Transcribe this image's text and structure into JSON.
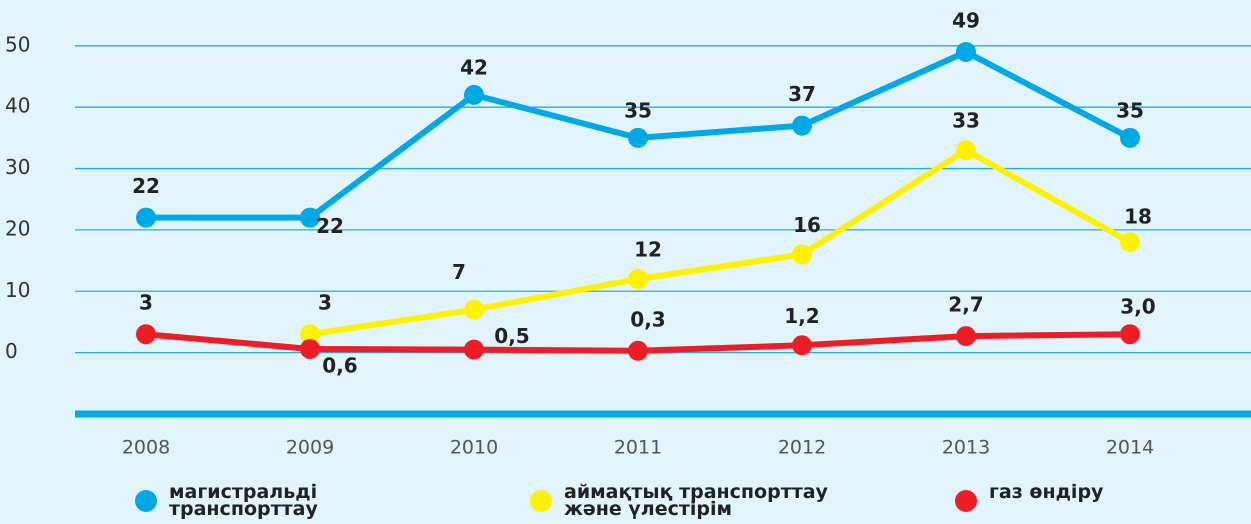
{
  "chart_data": {
    "type": "line",
    "categories": [
      "2008",
      "2009",
      "2010",
      "2011",
      "2012",
      "2013",
      "2014"
    ],
    "series": [
      {
        "name": "магистральді транспорттау",
        "color": "#00a9e6",
        "values": [
          22,
          22,
          42,
          35,
          37,
          49,
          35
        ]
      },
      {
        "name": "аймақтық транспорттау және үлестірім",
        "color": "#fff200",
        "values": [
          null,
          3,
          7,
          12,
          16,
          33,
          18
        ]
      },
      {
        "name": "газ өндіру",
        "color": "#ee1c25",
        "values": [
          3,
          0.6,
          0.5,
          0.3,
          1.2,
          2.7,
          3.0
        ],
        "value_labels": [
          "3",
          "0,6",
          "0,5",
          "0,3",
          "1,2",
          "2,7",
          "3,0"
        ]
      }
    ],
    "ylim": [
      -10,
      56
    ],
    "yticks": [
      0,
      10,
      20,
      30,
      40,
      50
    ],
    "grid": true,
    "legend": "bottom"
  }
}
